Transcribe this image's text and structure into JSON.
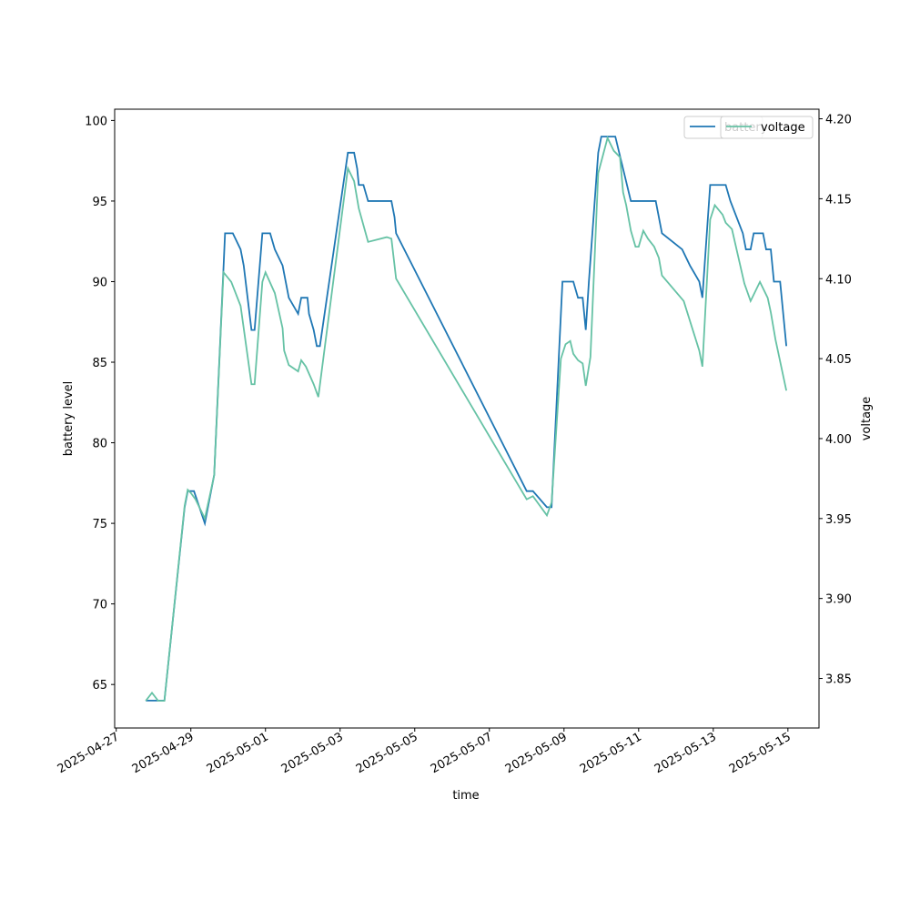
{
  "chart_data": {
    "type": "line",
    "xlabel": "time",
    "ylabel": "battery level",
    "y2label": "voltage",
    "xlim": [
      "2025-04-26T23:00",
      "2025-05-15T20:00"
    ],
    "xticks": [
      "2025-04-27",
      "2025-04-29",
      "2025-05-01",
      "2025-05-03",
      "2025-05-05",
      "2025-05-07",
      "2025-05-09",
      "2025-05-11",
      "2025-05-13",
      "2025-05-15"
    ],
    "ylim": [
      62.3,
      100.7
    ],
    "yticks": [
      65,
      70,
      75,
      80,
      85,
      90,
      95,
      100
    ],
    "y2lim": [
      3.819,
      4.206
    ],
    "y2ticks": [
      3.85,
      {
        "value": 3.9,
        "label": "3.90"
      },
      3.95,
      {
        "value": 4.0,
        "label": "4.00"
      },
      4.05,
      {
        "value": 4.1,
        "label": "4.10"
      },
      4.15,
      {
        "value": 4.2,
        "label": "4.20"
      }
    ],
    "legend": "upper right",
    "series": [
      {
        "name": "battery",
        "color": "#1f77b4",
        "axis": "y",
        "x": [
          "2025-04-27T19:00",
          "2025-04-28T07:00",
          "2025-04-28T20:00",
          "2025-04-28T22:00",
          "2025-04-29T02:00",
          "2025-04-29T09:00",
          "2025-04-29T15:00",
          "2025-04-29T22:00",
          "2025-04-30T03:00",
          "2025-04-30T08:00",
          "2025-04-30T10:00",
          "2025-04-30T15:00",
          "2025-04-30T17:00",
          "2025-04-30T22:00",
          "2025-05-01T03:00",
          "2025-05-01T06:00",
          "2025-05-01T11:00",
          "2025-05-01T15:00",
          "2025-05-01T21:00",
          "2025-05-01T23:00",
          "2025-05-02T03:00",
          "2025-05-02T04:00",
          "2025-05-02T07:00",
          "2025-05-02T09:00",
          "2025-05-02T11:00",
          "2025-05-03T05:00",
          "2025-05-03T09:00",
          "2025-05-03T11:00",
          "2025-05-03T12:00",
          "2025-05-03T15:00",
          "2025-05-03T18:00",
          "2025-05-04T09:00",
          "2025-05-04T11:00",
          "2025-05-04T12:00",
          "2025-05-08T00:00",
          "2025-05-08T04:00",
          "2025-05-08T13:00",
          "2025-05-08T16:00",
          "2025-05-08T23:00",
          "2025-05-09T06:00",
          "2025-05-09T09:00",
          "2025-05-09T12:00",
          "2025-05-09T14:00",
          "2025-05-09T16:00",
          "2025-05-09T22:00",
          "2025-05-10T00:00",
          "2025-05-10T09:00",
          "2025-05-10T19:00",
          "2025-05-11T11:00",
          "2025-05-11T15:00",
          "2025-05-12T04:00",
          "2025-05-12T09:00",
          "2025-05-12T15:00",
          "2025-05-12T17:00",
          "2025-05-12T22:00",
          "2025-05-13T08:00",
          "2025-05-13T11:00",
          "2025-05-13T19:00",
          "2025-05-13T21:00",
          "2025-05-14T00:00",
          "2025-05-14T02:00",
          "2025-05-14T08:00",
          "2025-05-14T10:00",
          "2025-05-14T13:00",
          "2025-05-14T15:00",
          "2025-05-14T19:00",
          "2025-05-14T23:00"
        ],
        "values": [
          64,
          64,
          76,
          77,
          77,
          75,
          78,
          93,
          93,
          92,
          91,
          87,
          87,
          93,
          93,
          92,
          91,
          89,
          88,
          89,
          89,
          88,
          87,
          86,
          86,
          98,
          98,
          97,
          96,
          96,
          95,
          95,
          94,
          93,
          77,
          77,
          76,
          76,
          90,
          90,
          89,
          89,
          87,
          90,
          98,
          99,
          99,
          95,
          95,
          93,
          92,
          91,
          90,
          89,
          96,
          96,
          95,
          93,
          92,
          92,
          93,
          93,
          92,
          92,
          90,
          90,
          86
        ]
      },
      {
        "name": "voltage",
        "color": "#66c2a5",
        "axis": "y2",
        "x": [
          "2025-04-27T19:00",
          "2025-04-27T23:00",
          "2025-04-28T03:00",
          "2025-04-28T07:00",
          "2025-04-28T20:00",
          "2025-04-28T22:00",
          "2025-04-29T00:00",
          "2025-04-29T03:00",
          "2025-04-29T09:00",
          "2025-04-29T15:00",
          "2025-04-29T21:00",
          "2025-04-30T02:00",
          "2025-04-30T08:00",
          "2025-04-30T15:00",
          "2025-04-30T17:00",
          "2025-04-30T22:00",
          "2025-05-01T00:00",
          "2025-05-01T06:00",
          "2025-05-01T11:00",
          "2025-05-01T12:00",
          "2025-05-01T15:00",
          "2025-05-01T21:00",
          "2025-05-01T23:00",
          "2025-05-02T02:00",
          "2025-05-02T07:00",
          "2025-05-02T10:00",
          "2025-05-03T05:00",
          "2025-05-03T09:00",
          "2025-05-03T12:00",
          "2025-05-03T18:00",
          "2025-05-04T06:00",
          "2025-05-04T09:00",
          "2025-05-04T12:00",
          "2025-05-08T00:00",
          "2025-05-08T04:00",
          "2025-05-08T13:00",
          "2025-05-08T16:00",
          "2025-05-08T22:00",
          "2025-05-09T01:00",
          "2025-05-09T04:00",
          "2025-05-09T06:00",
          "2025-05-09T09:00",
          "2025-05-09T12:00",
          "2025-05-09T14:00",
          "2025-05-09T17:00",
          "2025-05-09T22:00",
          "2025-05-10T04:00",
          "2025-05-10T08:00",
          "2025-05-10T12:00",
          "2025-05-10T14:00",
          "2025-05-10T16:00",
          "2025-05-10T19:00",
          "2025-05-10T22:00",
          "2025-05-11T00:00",
          "2025-05-11T03:00",
          "2025-05-11T06:00",
          "2025-05-11T10:00",
          "2025-05-11T13:00",
          "2025-05-11T15:00",
          "2025-05-12T05:00",
          "2025-05-12T15:00",
          "2025-05-12T17:00",
          "2025-05-12T22:00",
          "2025-05-13T01:00",
          "2025-05-13T06:00",
          "2025-05-13T08:00",
          "2025-05-13T12:00",
          "2025-05-13T20:00",
          "2025-05-14T00:00",
          "2025-05-14T06:00",
          "2025-05-14T11:00",
          "2025-05-14T13:00",
          "2025-05-14T16:00",
          "2025-05-14T23:00"
        ],
        "values": [
          3.836,
          3.841,
          3.836,
          3.836,
          3.958,
          3.968,
          3.966,
          3.962,
          3.95,
          3.977,
          4.104,
          4.098,
          4.083,
          4.034,
          4.034,
          4.098,
          4.104,
          4.091,
          4.069,
          4.055,
          4.046,
          4.042,
          4.049,
          4.045,
          4.034,
          4.026,
          4.169,
          4.161,
          4.144,
          4.123,
          4.126,
          4.125,
          4.1,
          3.962,
          3.964,
          3.952,
          3.96,
          4.05,
          4.059,
          4.061,
          4.053,
          4.049,
          4.047,
          4.033,
          4.051,
          4.166,
          4.188,
          4.18,
          4.176,
          4.154,
          4.146,
          4.13,
          4.12,
          4.12,
          4.13,
          4.125,
          4.12,
          4.113,
          4.102,
          4.086,
          4.055,
          4.045,
          4.137,
          4.146,
          4.14,
          4.135,
          4.131,
          4.097,
          4.086,
          4.098,
          4.088,
          4.079,
          4.062,
          4.03
        ]
      }
    ]
  }
}
